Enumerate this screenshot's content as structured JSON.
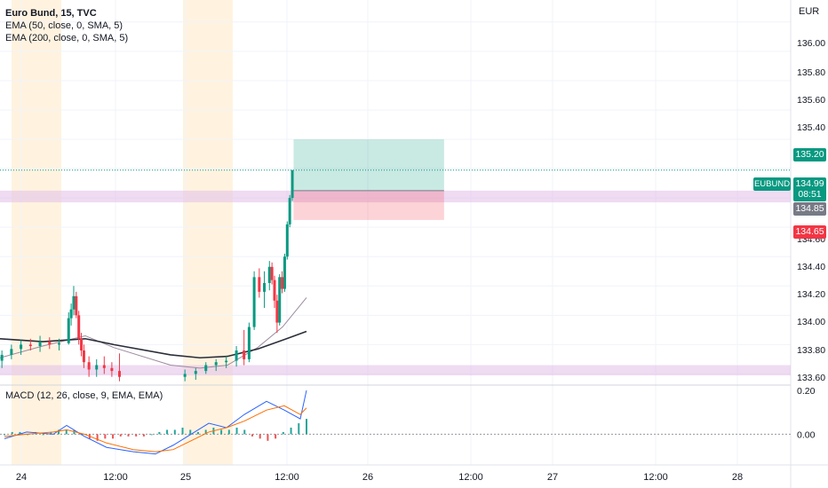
{
  "chart_title": "Euro Bund, 15, TVC",
  "indicators": {
    "ema50": "EMA (50, close, 0, SMA, 5)",
    "ema200": "EMA (200, close, 0, SMA, 5)",
    "macd": "MACD (12, 26, close, 9, EMA, EMA)"
  },
  "currency": "EUR",
  "price_axis_labels": [
    "136.00",
    "135.80",
    "135.60",
    "135.40",
    "135.20",
    "134.99",
    "134.85",
    "134.65",
    "134.60",
    "134.40",
    "134.20",
    "134.00",
    "133.80",
    "133.60"
  ],
  "macd_axis_labels": [
    "0.20",
    "0.00"
  ],
  "time_axis_labels": [
    "24",
    "12:00",
    "25",
    "12:00",
    "26",
    "12:00",
    "27",
    "12:00",
    "28"
  ],
  "tags": {
    "symbol": "EUBUND",
    "last_price": "134.99",
    "countdown": "08:51",
    "target": "135.20",
    "entry": "134.85",
    "stop": "134.65"
  },
  "colors": {
    "up": "#089981",
    "down": "#f23645",
    "ema50": "#9c8a9e",
    "ema200": "#2a2e39",
    "macd_line": "#2962ff",
    "signal_line": "#ff6d00",
    "zone": "#e1bee7",
    "session": "#fff3e0"
  },
  "chart_data": {
    "type": "candlestick",
    "title": "Euro Bund, 15, TVC",
    "price_range": [
      133.53,
      136.15
    ],
    "price_ticks": [
      133.6,
      133.8,
      134.0,
      134.2,
      134.4,
      134.6,
      134.8,
      135.0,
      135.2,
      135.4,
      135.6,
      135.8,
      136.0
    ],
    "time_ticks": [
      "24",
      "12:00",
      "25",
      "12:00",
      "26",
      "12:00",
      "27",
      "12:00",
      "28"
    ],
    "candles": [
      {
        "t": "24 00:15",
        "o": 133.69,
        "h": 133.76,
        "l": 133.64,
        "c": 133.73
      },
      {
        "t": "24 01:30",
        "o": 133.73,
        "h": 133.8,
        "l": 133.7,
        "c": 133.77
      },
      {
        "t": "24 02:45",
        "o": 133.77,
        "h": 133.83,
        "l": 133.73,
        "c": 133.8
      },
      {
        "t": "24 04:00",
        "o": 133.8,
        "h": 133.84,
        "l": 133.76,
        "c": 133.79
      },
      {
        "t": "24 05:15",
        "o": 133.79,
        "h": 133.86,
        "l": 133.75,
        "c": 133.82
      },
      {
        "t": "24 06:30",
        "o": 133.82,
        "h": 133.85,
        "l": 133.77,
        "c": 133.8
      },
      {
        "t": "24 07:45",
        "o": 133.8,
        "h": 133.84,
        "l": 133.76,
        "c": 133.81
      },
      {
        "t": "24 09:00",
        "o": 133.81,
        "h": 134.02,
        "l": 133.8,
        "c": 133.98
      },
      {
        "t": "24 09:20",
        "o": 133.98,
        "h": 134.08,
        "l": 133.93,
        "c": 134.04
      },
      {
        "t": "24 09:40",
        "o": 134.04,
        "h": 134.2,
        "l": 134.0,
        "c": 134.13
      },
      {
        "t": "24 10:00",
        "o": 134.13,
        "h": 134.16,
        "l": 133.98,
        "c": 134.0
      },
      {
        "t": "24 10:20",
        "o": 134.0,
        "h": 134.03,
        "l": 133.8,
        "c": 133.84
      },
      {
        "t": "24 10:40",
        "o": 133.84,
        "h": 133.88,
        "l": 133.72,
        "c": 133.76
      },
      {
        "t": "24 11:00",
        "o": 133.76,
        "h": 133.8,
        "l": 133.64,
        "c": 133.68
      },
      {
        "t": "24 11:40",
        "o": 133.68,
        "h": 133.72,
        "l": 133.58,
        "c": 133.63
      },
      {
        "t": "24 12:40",
        "o": 133.63,
        "h": 133.7,
        "l": 133.58,
        "c": 133.66
      },
      {
        "t": "24 13:40",
        "o": 133.66,
        "h": 133.72,
        "l": 133.6,
        "c": 133.64
      },
      {
        "t": "24 14:40",
        "o": 133.64,
        "h": 133.68,
        "l": 133.58,
        "c": 133.62
      },
      {
        "t": "24 15:40",
        "o": 133.62,
        "h": 133.74,
        "l": 133.55,
        "c": 133.58
      },
      {
        "t": "25 00:15",
        "o": 133.58,
        "h": 133.63,
        "l": 133.55,
        "c": 133.6
      },
      {
        "t": "25 01:40",
        "o": 133.6,
        "h": 133.64,
        "l": 133.56,
        "c": 133.62
      },
      {
        "t": "25 03:00",
        "o": 133.62,
        "h": 133.68,
        "l": 133.6,
        "c": 133.66
      },
      {
        "t": "25 04:20",
        "o": 133.66,
        "h": 133.7,
        "l": 133.62,
        "c": 133.68
      },
      {
        "t": "25 05:40",
        "o": 133.68,
        "h": 133.72,
        "l": 133.64,
        "c": 133.69
      },
      {
        "t": "25 07:00",
        "o": 133.69,
        "h": 133.79,
        "l": 133.65,
        "c": 133.76
      },
      {
        "t": "25 08:00",
        "o": 133.76,
        "h": 133.9,
        "l": 133.66,
        "c": 133.7
      },
      {
        "t": "25 08:40",
        "o": 133.7,
        "h": 133.95,
        "l": 133.68,
        "c": 133.92
      },
      {
        "t": "25 09:20",
        "o": 133.92,
        "h": 134.3,
        "l": 133.9,
        "c": 134.26
      },
      {
        "t": "25 10:00",
        "o": 134.26,
        "h": 134.32,
        "l": 134.12,
        "c": 134.16
      },
      {
        "t": "25 10:40",
        "o": 134.16,
        "h": 134.3,
        "l": 134.05,
        "c": 134.22
      },
      {
        "t": "25 11:20",
        "o": 134.22,
        "h": 134.37,
        "l": 134.17,
        "c": 134.33
      },
      {
        "t": "25 11:40",
        "o": 134.33,
        "h": 134.36,
        "l": 134.21,
        "c": 134.24
      },
      {
        "t": "25 12:00",
        "o": 134.24,
        "h": 134.27,
        "l": 134.05,
        "c": 134.1
      },
      {
        "t": "25 12:20",
        "o": 134.1,
        "h": 134.14,
        "l": 133.88,
        "c": 133.95
      },
      {
        "t": "25 12:40",
        "o": 133.95,
        "h": 134.28,
        "l": 133.93,
        "c": 134.26
      },
      {
        "t": "25 13:00",
        "o": 134.26,
        "h": 134.3,
        "l": 134.15,
        "c": 134.18
      },
      {
        "t": "25 13:20",
        "o": 134.18,
        "h": 134.42,
        "l": 134.16,
        "c": 134.4
      },
      {
        "t": "25 13:40",
        "o": 134.4,
        "h": 134.64,
        "l": 134.38,
        "c": 134.62
      },
      {
        "t": "25 14:00",
        "o": 134.62,
        "h": 134.82,
        "l": 134.6,
        "c": 134.8
      },
      {
        "t": "25 14:20",
        "o": 134.8,
        "h": 134.99,
        "l": 134.78,
        "c": 134.99
      }
    ],
    "ema_50": [
      [
        0,
        133.71
      ],
      [
        48,
        133.79
      ],
      [
        96,
        133.86
      ],
      [
        128,
        133.78
      ],
      [
        192,
        133.66
      ],
      [
        225,
        133.64
      ],
      [
        256,
        133.66
      ],
      [
        290,
        133.78
      ],
      [
        318,
        133.92
      ],
      [
        345,
        134.12
      ]
    ],
    "ema_200": [
      [
        0,
        133.84
      ],
      [
        48,
        133.82
      ],
      [
        96,
        133.84
      ],
      [
        128,
        133.8
      ],
      [
        192,
        133.73
      ],
      [
        225,
        133.71
      ],
      [
        256,
        133.72
      ],
      [
        290,
        133.77
      ],
      [
        318,
        133.83
      ],
      [
        345,
        133.89
      ]
    ],
    "zones": [
      {
        "from": 134.77,
        "to": 134.85
      },
      {
        "from": 133.59,
        "to": 133.66
      }
    ],
    "position": {
      "entry": 134.85,
      "target": 135.2,
      "stop": 134.65,
      "start_time": "25 14:30",
      "end_time": "26 10:00"
    },
    "macd_range": [
      -0.14,
      0.22
    ],
    "macd_ticks": [
      0.0,
      0.2
    ],
    "macd_line": [
      [
        5,
        -0.02
      ],
      [
        30,
        0.01
      ],
      [
        60,
        0.0
      ],
      [
        75,
        0.04
      ],
      [
        95,
        -0.01
      ],
      [
        120,
        -0.06
      ],
      [
        150,
        -0.08
      ],
      [
        175,
        -0.09
      ],
      [
        195,
        -0.05
      ],
      [
        215,
        0.0
      ],
      [
        235,
        0.05
      ],
      [
        255,
        0.03
      ],
      [
        275,
        0.09
      ],
      [
        300,
        0.15
      ],
      [
        320,
        0.11
      ],
      [
        338,
        0.07
      ],
      [
        345,
        0.2
      ]
    ],
    "macd_signal": [
      [
        5,
        -0.01
      ],
      [
        30,
        0.0
      ],
      [
        60,
        0.01
      ],
      [
        75,
        0.02
      ],
      [
        95,
        0.0
      ],
      [
        120,
        -0.04
      ],
      [
        150,
        -0.07
      ],
      [
        175,
        -0.08
      ],
      [
        195,
        -0.07
      ],
      [
        215,
        -0.03
      ],
      [
        235,
        0.01
      ],
      [
        255,
        0.03
      ],
      [
        275,
        0.06
      ],
      [
        300,
        0.11
      ],
      [
        320,
        0.13
      ],
      [
        338,
        0.09
      ],
      [
        345,
        0.12
      ]
    ],
    "macd_hist": [
      0.0,
      0.01,
      0.01,
      0.0,
      0.01,
      0.0,
      0.01,
      0.02,
      0.02,
      0.02,
      0.0,
      -0.02,
      -0.03,
      -0.02,
      -0.02,
      -0.01,
      -0.01,
      -0.01,
      -0.01,
      0.0,
      0.01,
      0.02,
      0.02,
      0.03,
      0.02,
      0.01,
      0.02,
      0.03,
      0.02,
      0.02,
      0.03,
      0.02,
      -0.01,
      -0.02,
      -0.03,
      -0.02,
      0.01,
      0.03,
      0.05,
      0.07
    ]
  }
}
